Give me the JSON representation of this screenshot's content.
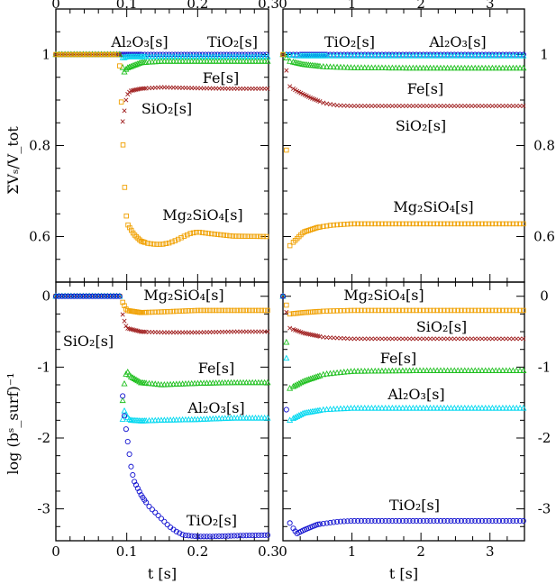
{
  "figure": {
    "ylabel_top": "ΣVₛ/V_tot",
    "ylabel_bottom": "log (bˢ_surf)⁻¹",
    "xlabel": "t [s]"
  },
  "colors": {
    "TiO2": "#1010d0",
    "Al2O3": "#00d8f0",
    "Fe": "#20c020",
    "SiO2": "#a02020",
    "Mg2SiO4": "#f0a000"
  },
  "chart_data": [
    {
      "type": "scatter",
      "panel": "top-left",
      "xlim": [
        0,
        0.3
      ],
      "ylim": [
        0.5,
        1.1
      ],
      "xticks": [
        "0",
        "0.1",
        "0.2",
        "0.3"
      ],
      "yticks": [
        "0.6",
        "0.8",
        "1"
      ],
      "ylabel": "ΣVₛ/V_tot",
      "annotations": [
        {
          "text": "Al₂O₃[s]",
          "color_key": "Al2O3"
        },
        {
          "text": "TiO₂[s]",
          "color_key": "TiO2"
        },
        {
          "text": "Fe[s]",
          "color_key": "Fe"
        },
        {
          "text": "SiO₂[s]",
          "color_key": "SiO2"
        },
        {
          "text": "Mg₂SiO₄[s]",
          "color_key": "Mg2SiO4"
        }
      ],
      "series": [
        {
          "name": "TiO₂[s]",
          "marker": "circle",
          "color_key": "TiO2",
          "x": [
            0.0,
            0.085,
            0.095,
            0.1,
            0.15,
            0.2,
            0.25,
            0.3
          ],
          "y": [
            1.0,
            1.0,
            1.0,
            1.0,
            1.0,
            1.0,
            1.0,
            1.0
          ]
        },
        {
          "name": "Al₂O₃[s]",
          "marker": "triangle",
          "color_key": "Al2O3",
          "x": [
            0.0,
            0.09,
            0.095,
            0.1,
            0.15,
            0.2,
            0.25,
            0.3
          ],
          "y": [
            1.0,
            1.0,
            0.992,
            0.995,
            0.995,
            0.995,
            0.995,
            0.995
          ]
        },
        {
          "name": "Fe[s]",
          "marker": "triangle",
          "color_key": "Fe",
          "x": [
            0.0,
            0.09,
            0.096,
            0.1,
            0.12,
            0.15,
            0.2,
            0.25,
            0.3
          ],
          "y": [
            1.0,
            1.0,
            0.96,
            0.97,
            0.982,
            0.985,
            0.985,
            0.985,
            0.985
          ]
        },
        {
          "name": "SiO₂[s]",
          "marker": "cross",
          "color_key": "SiO2",
          "x": [
            0.0,
            0.09,
            0.094,
            0.097,
            0.1,
            0.105,
            0.12,
            0.15,
            0.2,
            0.25,
            0.3
          ],
          "y": [
            1.0,
            1.0,
            0.85,
            0.88,
            0.91,
            0.92,
            0.925,
            0.928,
            0.926,
            0.925,
            0.925
          ]
        },
        {
          "name": "Mg₂SiO₄[s]",
          "marker": "square",
          "color_key": "Mg2SiO4",
          "x": [
            0.0,
            0.089,
            0.091,
            0.094,
            0.097,
            0.1,
            0.11,
            0.12,
            0.13,
            0.14,
            0.15,
            0.16,
            0.17,
            0.18,
            0.19,
            0.2,
            0.22,
            0.25,
            0.3
          ],
          "y": [
            1.0,
            1.0,
            0.95,
            0.83,
            0.71,
            0.63,
            0.605,
            0.59,
            0.585,
            0.583,
            0.583,
            0.586,
            0.592,
            0.6,
            0.607,
            0.61,
            0.606,
            0.601,
            0.6
          ]
        }
      ]
    },
    {
      "type": "scatter",
      "panel": "top-right",
      "xlim": [
        0,
        3.5
      ],
      "ylim": [
        0.5,
        1.1
      ],
      "xticks": [
        "0",
        "1",
        "2",
        "3"
      ],
      "yticks": [
        "0.6",
        "0.8",
        "1"
      ],
      "annotations": [
        {
          "text": "TiO₂[s]",
          "color_key": "TiO2"
        },
        {
          "text": "Al₂O₃[s]",
          "color_key": "Al2O3"
        },
        {
          "text": "Fe[s]",
          "color_key": "Fe"
        },
        {
          "text": "SiO₂[s]",
          "color_key": "SiO2"
        },
        {
          "text": "Mg₂SiO₄[s]",
          "color_key": "Mg2SiO4"
        }
      ],
      "series": [
        {
          "name": "TiO₂[s]",
          "marker": "circle",
          "color_key": "TiO2",
          "x": [
            0.0,
            0.2,
            0.5,
            1.0,
            2.0,
            3.5
          ],
          "y": [
            1.0,
            1.0,
            1.0,
            1.0,
            1.0,
            1.0
          ]
        },
        {
          "name": "Al₂O₃[s]",
          "marker": "triangle",
          "color_key": "Al2O3",
          "x": [
            0.0,
            0.2,
            0.5,
            1.0,
            2.0,
            3.5
          ],
          "y": [
            1.0,
            0.997,
            0.997,
            0.997,
            0.997,
            0.997
          ]
        },
        {
          "name": "Fe[s]",
          "marker": "triangle",
          "color_key": "Fe",
          "x": [
            0.0,
            0.1,
            0.3,
            0.6,
            1.0,
            2.0,
            3.5
          ],
          "y": [
            1.0,
            0.985,
            0.978,
            0.973,
            0.971,
            0.97,
            0.97
          ]
        },
        {
          "name": "SiO₂[s]",
          "marker": "cross",
          "color_key": "SiO2",
          "x": [
            0.0,
            0.1,
            0.2,
            0.4,
            0.6,
            0.8,
            1.0,
            2.0,
            3.5
          ],
          "y": [
            1.0,
            0.93,
            0.92,
            0.905,
            0.893,
            0.888,
            0.887,
            0.887,
            0.887
          ]
        },
        {
          "name": "Mg₂SiO₄[s]",
          "marker": "square",
          "color_key": "Mg2SiO4",
          "x": [
            0.0,
            0.1,
            0.2,
            0.3,
            0.5,
            0.7,
            1.0,
            1.5,
            2.0,
            3.5
          ],
          "y": [
            1.0,
            0.58,
            0.595,
            0.61,
            0.62,
            0.625,
            0.628,
            0.628,
            0.628,
            0.628
          ]
        }
      ]
    },
    {
      "type": "scatter",
      "panel": "bottom-left",
      "xlim": [
        0,
        0.3
      ],
      "ylim": [
        -3.45,
        0.2
      ],
      "xticks": [
        "0",
        "0.1",
        "0.2",
        "0.3"
      ],
      "yticks": [
        "-3",
        "-2",
        "-1",
        "0"
      ],
      "xlabel": "t [s]",
      "ylabel": "log (bˢ_surf)⁻¹",
      "annotations": [
        {
          "text": "Mg₂SiO₄[s]",
          "color_key": "Mg2SiO4"
        },
        {
          "text": "SiO₂[s]",
          "color_key": "SiO2"
        },
        {
          "text": "Fe[s]",
          "color_key": "Fe"
        },
        {
          "text": "Al₂O₃[s]",
          "color_key": "Al2O3"
        },
        {
          "text": "TiO₂[s]",
          "color_key": "TiO2"
        }
      ],
      "series": [
        {
          "name": "Mg₂SiO₄[s]",
          "marker": "square",
          "color_key": "Mg2SiO4",
          "x": [
            0.0,
            0.09,
            0.095,
            0.1,
            0.12,
            0.15,
            0.2,
            0.25,
            0.3
          ],
          "y": [
            0.0,
            0.0,
            -0.1,
            -0.2,
            -0.23,
            -0.22,
            -0.2,
            -0.2,
            -0.2
          ]
        },
        {
          "name": "SiO₂[s]",
          "marker": "cross",
          "color_key": "SiO2",
          "x": [
            0.0,
            0.09,
            0.095,
            0.1,
            0.12,
            0.15,
            0.2,
            0.25,
            0.3
          ],
          "y": [
            0.0,
            0.0,
            -0.3,
            -0.45,
            -0.5,
            -0.51,
            -0.51,
            -0.5,
            -0.5
          ]
        },
        {
          "name": "Fe[s]",
          "marker": "triangle",
          "color_key": "Fe",
          "x": [
            0.0,
            0.09,
            0.094,
            0.097,
            0.1,
            0.105,
            0.12,
            0.15,
            0.2,
            0.25,
            0.3
          ],
          "y": [
            0.0,
            0.0,
            -1.5,
            -1.2,
            -1.05,
            -1.13,
            -1.22,
            -1.25,
            -1.23,
            -1.22,
            -1.22
          ]
        },
        {
          "name": "Al₂O₃[s]",
          "marker": "triangle",
          "color_key": "Al2O3",
          "x": [
            0.0,
            0.09,
            0.094,
            0.097,
            0.1,
            0.105,
            0.12,
            0.15,
            0.2,
            0.25,
            0.3
          ],
          "y": [
            0.0,
            0.0,
            -1.75,
            -1.6,
            -1.7,
            -1.75,
            -1.76,
            -1.75,
            -1.74,
            -1.72,
            -1.72
          ]
        },
        {
          "name": "TiO₂[s]",
          "marker": "circle",
          "color_key": "TiO2",
          "x": [
            0.0,
            0.09,
            0.092,
            0.095,
            0.098,
            0.102,
            0.106,
            0.11,
            0.12,
            0.13,
            0.14,
            0.15,
            0.16,
            0.17,
            0.18,
            0.2,
            0.22,
            0.25,
            0.3
          ],
          "y": [
            0.0,
            0.0,
            -0.95,
            -1.55,
            -1.8,
            -2.1,
            -2.4,
            -2.6,
            -2.8,
            -2.95,
            -3.05,
            -3.15,
            -3.25,
            -3.32,
            -3.37,
            -3.39,
            -3.39,
            -3.38,
            -3.37
          ]
        }
      ]
    },
    {
      "type": "scatter",
      "panel": "bottom-right",
      "xlim": [
        0,
        3.5
      ],
      "ylim": [
        -3.45,
        0.2
      ],
      "xticks": [
        "0",
        "1",
        "2",
        "3"
      ],
      "yticks": [
        "-3",
        "-2",
        "-1",
        "0"
      ],
      "xlabel": "t [s]",
      "annotations": [
        {
          "text": "Mg₂SiO₄[s]",
          "color_key": "Mg2SiO4"
        },
        {
          "text": "SiO₂[s]",
          "color_key": "SiO2"
        },
        {
          "text": "Fe[s]",
          "color_key": "Fe"
        },
        {
          "text": "Al₂O₃[s]",
          "color_key": "Al2O3"
        },
        {
          "text": "TiO₂[s]",
          "color_key": "TiO2"
        }
      ],
      "series": [
        {
          "name": "Mg₂SiO₄[s]",
          "marker": "square",
          "color_key": "Mg2SiO4",
          "x": [
            0.0,
            0.1,
            0.3,
            0.6,
            1.0,
            2.0,
            3.5
          ],
          "y": [
            0.0,
            -0.25,
            -0.23,
            -0.21,
            -0.2,
            -0.2,
            -0.2
          ]
        },
        {
          "name": "SiO₂[s]",
          "marker": "cross",
          "color_key": "SiO2",
          "x": [
            0.0,
            0.1,
            0.3,
            0.6,
            1.0,
            2.0,
            3.5
          ],
          "y": [
            0.0,
            -0.45,
            -0.52,
            -0.58,
            -0.6,
            -0.6,
            -0.6
          ]
        },
        {
          "name": "Fe[s]",
          "marker": "triangle",
          "color_key": "Fe",
          "x": [
            0.0,
            0.1,
            0.3,
            0.6,
            1.0,
            2.0,
            3.5
          ],
          "y": [
            0.0,
            -1.3,
            -1.2,
            -1.1,
            -1.06,
            -1.05,
            -1.05
          ]
        },
        {
          "name": "Al₂O₃[s]",
          "marker": "triangle",
          "color_key": "Al2O3",
          "x": [
            0.0,
            0.1,
            0.3,
            0.6,
            1.0,
            2.0,
            3.5
          ],
          "y": [
            0.0,
            -1.75,
            -1.65,
            -1.6,
            -1.58,
            -1.58,
            -1.58
          ]
        },
        {
          "name": "TiO₂[s]",
          "marker": "circle",
          "color_key": "TiO2",
          "x": [
            0.0,
            0.1,
            0.2,
            0.3,
            0.5,
            0.8,
            1.0,
            2.0,
            3.5
          ],
          "y": [
            0.0,
            -3.2,
            -3.35,
            -3.3,
            -3.22,
            -3.18,
            -3.17,
            -3.17,
            -3.17
          ]
        }
      ]
    }
  ]
}
